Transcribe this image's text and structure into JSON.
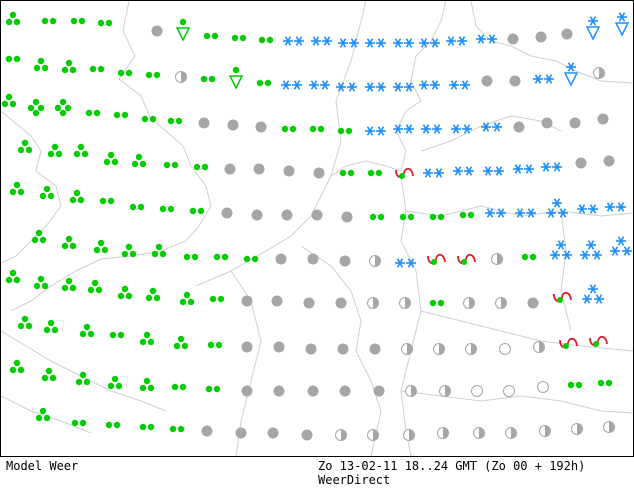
{
  "footer": {
    "model_label": "Model Weer",
    "valid_time": "Zo 13-02-11 18..24 GMT (Zo 00 + 192h)",
    "source": "WeerDirect"
  },
  "colors": {
    "rain": "#00cc00",
    "snow": "#1e90ff",
    "cloud": "#a6a6a6",
    "sleet_line": "#e0202a",
    "coast": "#cfcfcf",
    "border": "#000000"
  },
  "legend_symbols": [
    "light-rain-icon",
    "moderate-rain-icon",
    "showers-icon",
    "snow-icon",
    "sleet-icon",
    "overcast-icon",
    "partly-cloudy-icon",
    "clear-icon"
  ]
}
